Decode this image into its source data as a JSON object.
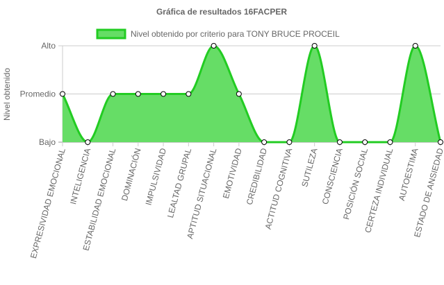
{
  "chart_data": {
    "type": "area",
    "title": "Gráfica de resultados 16FACPER",
    "ylabel": "Nivel obtenido",
    "xlabel": "",
    "y_levels": [
      "Bajo",
      "Promedio",
      "Alto"
    ],
    "ylim": [
      0,
      2
    ],
    "grid": true,
    "legend_position": "top",
    "categories": [
      "EXPRESIVIDAD EMOCIONAL",
      "INTELIGENCIA",
      "ESTABILIDAD EMOCIONAL",
      "DOMINACIÓN",
      "IMPULSIVIDAD",
      "LEALTAD GRUPAL",
      "APTITUD SITUACIONAL",
      "EMOTIVIDAD",
      "CREDIBILIDAD",
      "ACTITUD COGNITIVA",
      "SUTILEZA",
      "CONSCIENCIA",
      "POSICIÓN SOCIAL",
      "CERTEZA INDIVIDUAL",
      "AUTOESTIMA",
      "ESTADO DE ANSIEDAD"
    ],
    "series": [
      {
        "name": "Nivel obtenido por criterio para TONY BRUCE PROCEIL",
        "values": [
          1,
          0,
          1,
          1,
          1,
          1,
          2,
          1,
          0,
          0,
          2,
          0,
          0,
          0,
          2,
          0
        ],
        "fill_color": "#66dd66",
        "line_color": "#22cc22"
      }
    ]
  }
}
